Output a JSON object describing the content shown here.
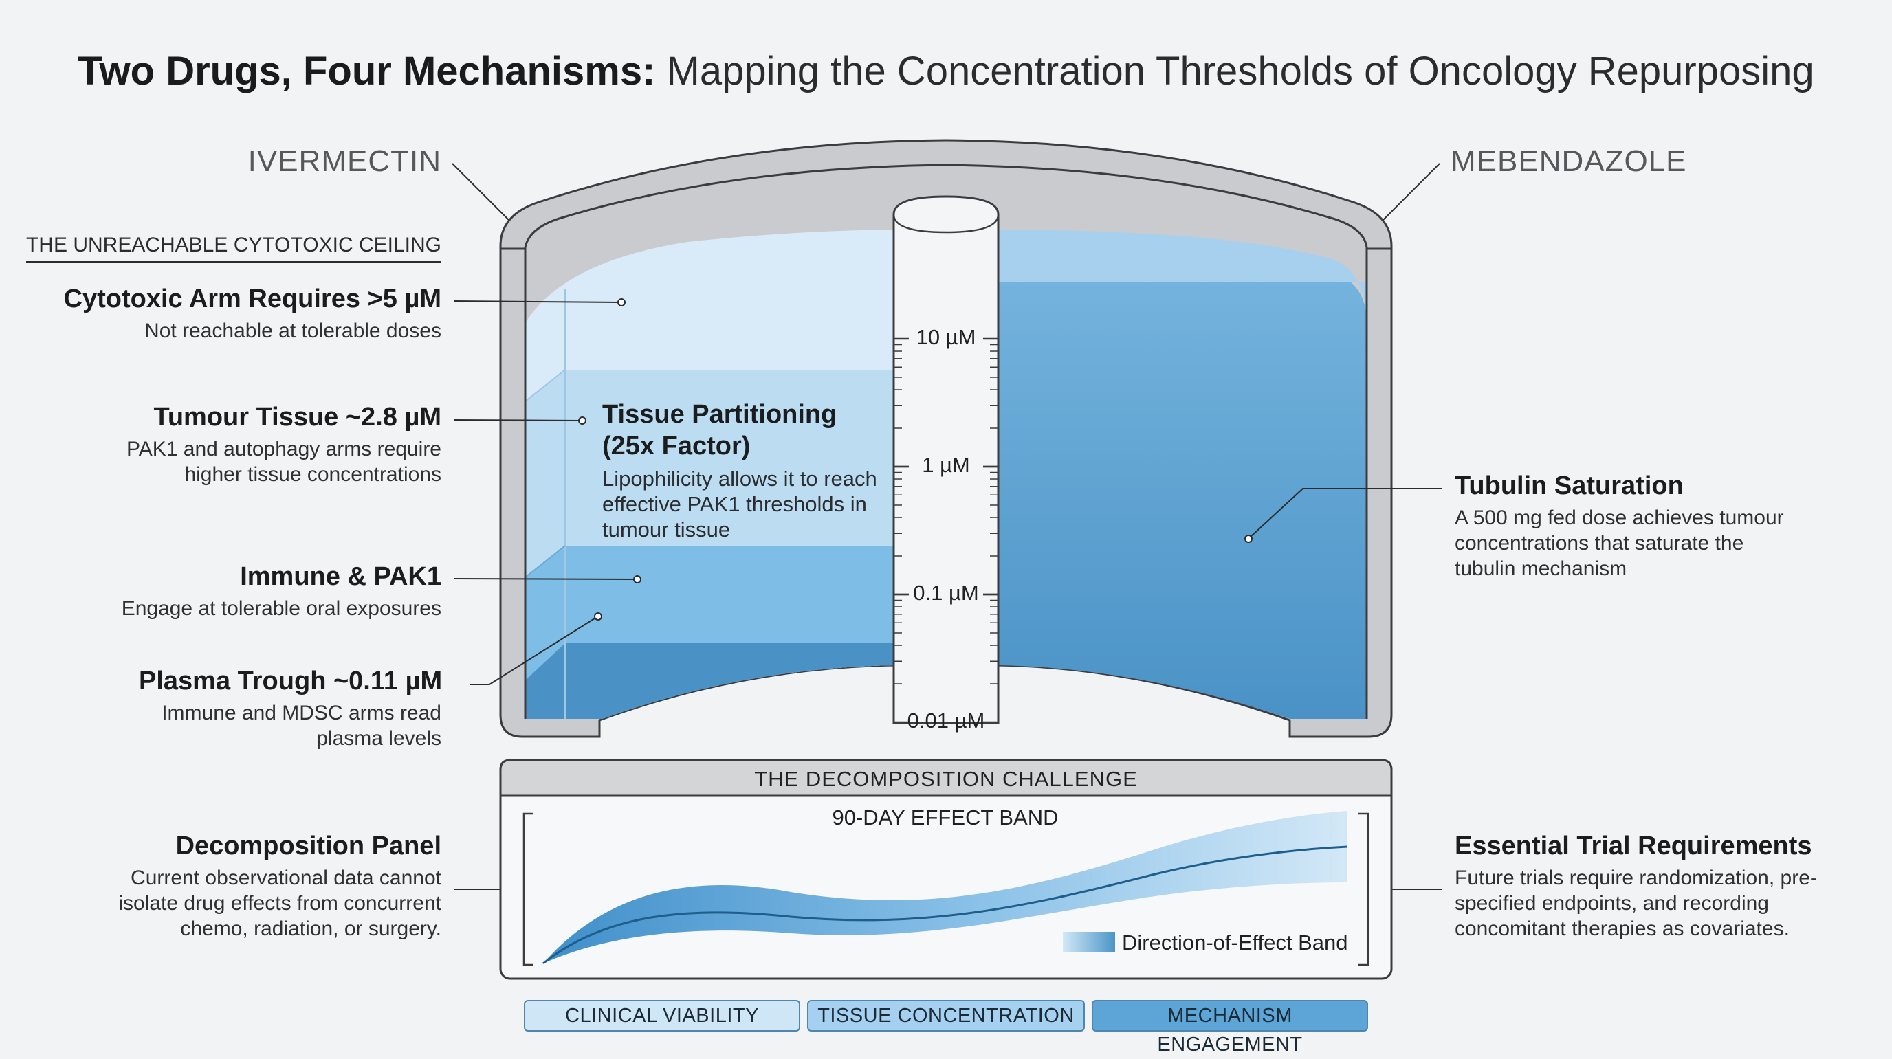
{
  "title": {
    "bold": "Two Drugs, Four Mechanisms:",
    "rest": " Mapping the Concentration Thresholds of Oncology Repurposing"
  },
  "drugs": {
    "left": "IVERMECTIN",
    "right": "MEBENDAZOLE"
  },
  "ceiling_label": "THE UNREACHABLE CYTOTOXIC CEILING",
  "left_labels": [
    {
      "heading": "Cytotoxic Arm Requires >5 µM",
      "sub": "Not reachable at tolerable doses"
    },
    {
      "heading": "Tumour Tissue ~2.8 µM",
      "sub": "PAK1 and autophagy arms require higher tissue concentrations"
    },
    {
      "heading": "Immune & PAK1",
      "sub": "Engage at tolerable oral exposures"
    },
    {
      "heading": "Plasma Trough ~0.11 µM",
      "sub": "Immune and MDSC arms read plasma levels"
    },
    {
      "heading": "Decomposition Panel",
      "sub": "Current observational data cannot isolate drug effects from concurrent chemo, radiation, or surgery."
    }
  ],
  "tissue_note": {
    "heading": "Tissue Partitioning (25x Factor)",
    "sub": "Lipophilicity allows it to reach effective PAK1 thresholds in tumour tissue"
  },
  "scale_ticks": [
    "10 µM",
    "1 µM",
    "0.1 µM",
    "0.01 µM"
  ],
  "right_labels": [
    {
      "heading": "Tubulin Saturation",
      "sub": "A 500 mg fed dose achieves tumour concentrations that saturate the tubulin mechanism"
    },
    {
      "heading": "Essential Trial Requirements",
      "sub": "Future trials require randomization, pre-specified endpoints, and recording concomitant therapies as covariates."
    }
  ],
  "panel": {
    "title": "THE DECOMPOSITION CHALLENGE",
    "band_title": "90-DAY EFFECT BAND",
    "legend": "Direction-of-Effect Band"
  },
  "pills": [
    "CLINICAL VIABILITY",
    "TISSUE CONCENTRATION",
    "MECHANISM ENGAGEMENT"
  ],
  "colors": {
    "light": "#d6e9f7",
    "mid": "#7dbde6",
    "dark": "#4a95c7",
    "mebendazole": "#5aa0cf",
    "frame": "#c9cbce",
    "frame_stroke": "#3a3c3f"
  }
}
